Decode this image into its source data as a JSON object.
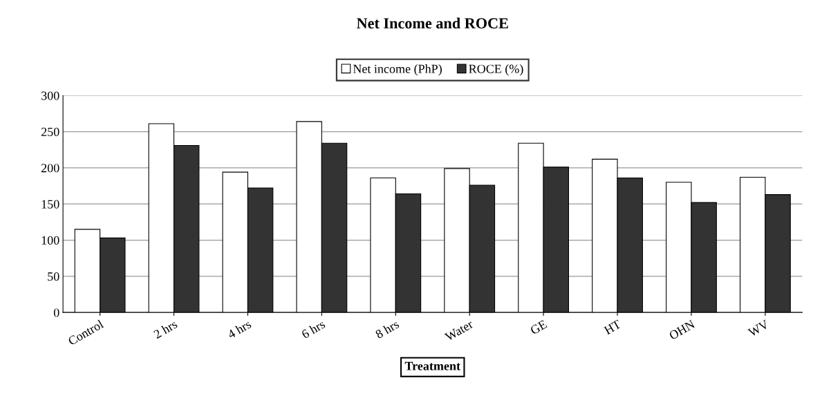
{
  "chart_data": {
    "type": "bar",
    "title": "Net Income and ROCE",
    "xlabel": "Treatment",
    "categories": [
      "Control",
      "2 hrs",
      "4 hrs",
      "6 hrs",
      "8 hrs",
      "Water",
      "GE",
      "HT",
      "OHN",
      "WV"
    ],
    "series": [
      {
        "name": "Net income (PhP)",
        "color": "#ffffff",
        "values": [
          115,
          261,
          194,
          264,
          186,
          199,
          234,
          212,
          180,
          187
        ]
      },
      {
        "name": "ROCE (%)",
        "color": "#333333",
        "values": [
          103,
          231,
          172,
          234,
          164,
          176,
          201,
          186,
          152,
          163
        ]
      }
    ],
    "ylim": [
      0,
      300
    ],
    "yticks": [
      0,
      50,
      100,
      150,
      200,
      250,
      300
    ],
    "grid": "y",
    "legend": "top"
  }
}
